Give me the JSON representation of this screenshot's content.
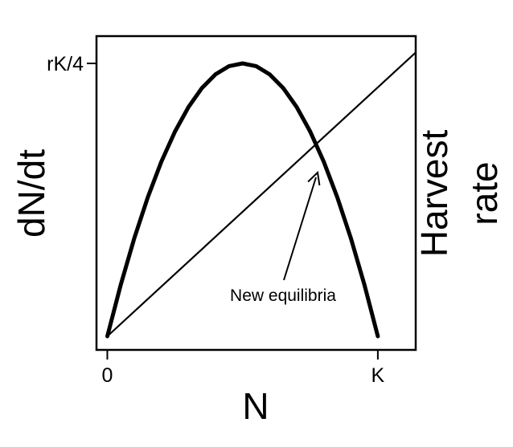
{
  "chart_data": {
    "type": "line",
    "title": "",
    "xlabel": "N",
    "ylabel": "dN/dt",
    "ylabel_right": "Harvest rate",
    "ylabel_right_lines": [
      "Harvest",
      "rate"
    ],
    "xlim": [
      -0.04,
      1.14
    ],
    "ylim": [
      -0.05,
      1.1
    ],
    "x_ticks": [
      {
        "value": 0,
        "label": "0"
      },
      {
        "value": 1,
        "label": "K"
      }
    ],
    "y_ticks": [
      {
        "value": 1,
        "label": "rK/4"
      }
    ],
    "grid": false,
    "legend": "none",
    "series": [
      {
        "kind": "curve",
        "x": [
          0,
          0.05,
          0.1,
          0.15,
          0.2,
          0.25,
          0.3,
          0.35,
          0.4,
          0.45,
          0.5,
          0.55,
          0.6,
          0.65,
          0.7,
          0.75,
          0.8,
          0.85,
          0.9,
          0.95,
          1
        ],
        "values": [
          0,
          0.19,
          0.36,
          0.51,
          0.64,
          0.75,
          0.84,
          0.91,
          0.96,
          0.99,
          1,
          0.99,
          0.96,
          0.91,
          0.84,
          0.75,
          0.64,
          0.51,
          0.36,
          0.19,
          0
        ],
        "color": "#000000"
      },
      {
        "kind": "line",
        "x": [
          0,
          1.14
        ],
        "values": [
          0,
          1.04
        ],
        "color": "#000000"
      }
    ],
    "annotations": [
      {
        "text": "New equilibria",
        "arrow_to": {
          "x": 0.78,
          "y": 0.69
        }
      }
    ]
  }
}
